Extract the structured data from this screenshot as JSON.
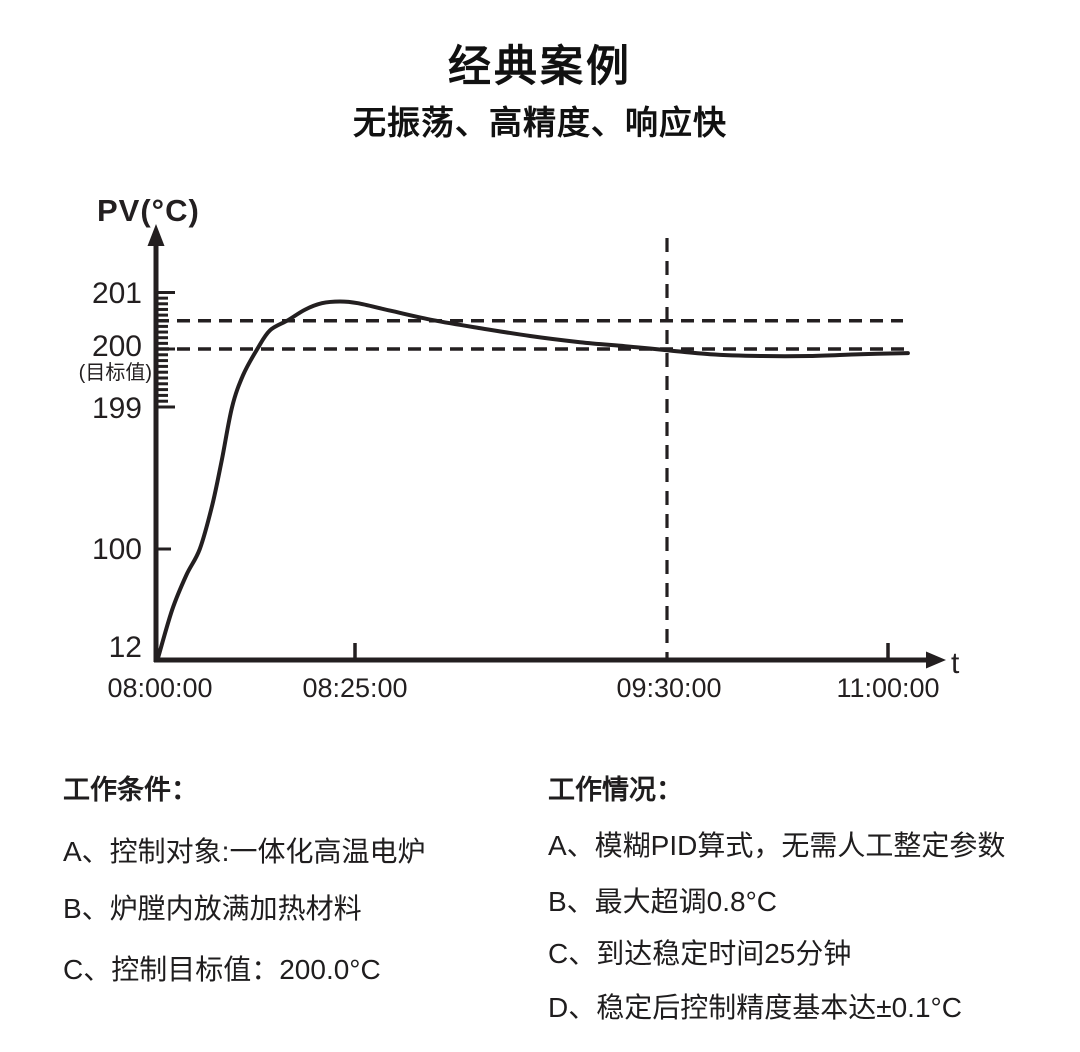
{
  "page": {
    "title": "经典案例",
    "subtitle": "无振荡、高精度、响应快"
  },
  "chart_data": {
    "type": "line",
    "title": "经典案例",
    "subtitle": "无振荡、高精度、响应快",
    "y_axis_label": "PV(°C)",
    "x_axis_label": "t",
    "line_color": "#231f20",
    "grid": false,
    "y_ticks": [
      {
        "label": "201",
        "value": 201
      },
      {
        "label": "200",
        "value": 200,
        "sublabel": "(目标值)"
      },
      {
        "label": "199",
        "value": 199
      },
      {
        "label": "100",
        "value": 100
      },
      {
        "label": "12",
        "value": 12
      }
    ],
    "x_ticks": [
      {
        "label": "08:00:00",
        "minutes": 0
      },
      {
        "label": "08:25:00",
        "minutes": 25
      },
      {
        "label": "09:30:00",
        "minutes": 90
      },
      {
        "label": "11:00:00",
        "minutes": 180
      }
    ],
    "ruler": {
      "from": 199,
      "to": 201,
      "step": 0.1
    },
    "reference_lines": {
      "target_temp": 200,
      "upper_band_temp": 200.5,
      "settle_line_minutes": 90
    },
    "series": [
      {
        "name": "PV",
        "points": [
          [
            0,
            12
          ],
          [
            1.8,
            51
          ],
          [
            3.6,
            79
          ],
          [
            5.3,
            100
          ],
          [
            6.9,
            131
          ],
          [
            8.1,
            162
          ],
          [
            9.4,
            199
          ],
          [
            10.8,
            199.55
          ],
          [
            12.6,
            200
          ],
          [
            14.2,
            200.33
          ],
          [
            16.5,
            200.51
          ],
          [
            18.7,
            200.7
          ],
          [
            20.8,
            200.81
          ],
          [
            23.1,
            200.84
          ],
          [
            25.6,
            200.81
          ],
          [
            32.3,
            200.68
          ],
          [
            41.3,
            200.51
          ],
          [
            51,
            200.37
          ],
          [
            61.5,
            200.23
          ],
          [
            71.9,
            200.12
          ],
          [
            81.3,
            200.05
          ],
          [
            90,
            199.98
          ],
          [
            107.5,
            199.91
          ],
          [
            127.9,
            199.88
          ],
          [
            148.2,
            199.88
          ],
          [
            168.6,
            199.91
          ],
          [
            188.1,
            199.93
          ]
        ]
      }
    ]
  },
  "notes_left": {
    "heading": "工作条件：",
    "items": [
      "A、控制对象:一体化高温电炉",
      "B、炉膛内放满加热材料",
      "C、控制目标值：200.0°C"
    ]
  },
  "notes_right": {
    "heading": "工作情况：",
    "items": [
      "A、模糊PID算式，无需人工整定参数",
      "B、最大超调0.8°C",
      "C、到达稳定时间25分钟",
      "D、稳定后控制精度基本达±0.1°C"
    ]
  }
}
